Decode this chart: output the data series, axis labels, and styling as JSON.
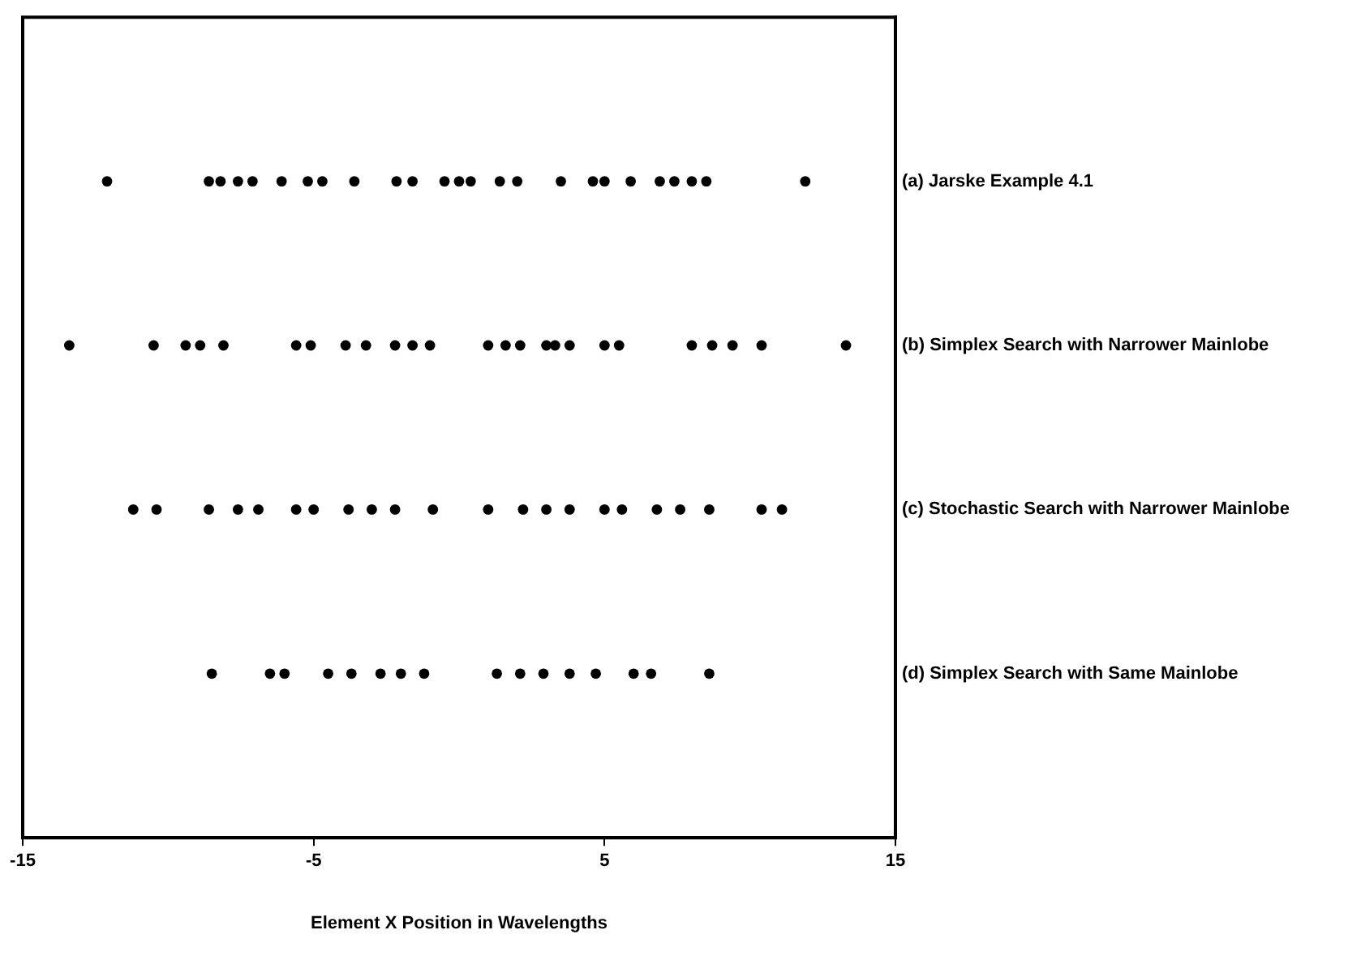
{
  "chart_data": {
    "type": "scatter",
    "orientation": "horizontal",
    "xlabel": "Element X Position in Wavelengths",
    "xlim": [
      -15,
      15
    ],
    "xticks": [
      -15,
      -5,
      5,
      15
    ],
    "grid": false,
    "legend": false,
    "marker": "circle",
    "categories": [
      "(a) Jarske Example 4.1",
      "(b) Simplex Search with Narrower Mainlobe",
      "(c) Stochastic Search with Narrower Mainlobe",
      "(d) Simplex Search with Same Mainlobe"
    ],
    "series": [
      {
        "color": "#000000",
        "x": [
          "(a) Jarske Example 4.1",
          "(a) Jarske Example 4.1",
          "(a) Jarske Example 4.1",
          "(a) Jarske Example 4.1",
          "(a) Jarske Example 4.1",
          "(a) Jarske Example 4.1",
          "(a) Jarske Example 4.1",
          "(a) Jarske Example 4.1",
          "(a) Jarske Example 4.1",
          "(a) Jarske Example 4.1",
          "(a) Jarske Example 4.1",
          "(a) Jarske Example 4.1",
          "(a) Jarske Example 4.1",
          "(a) Jarske Example 4.1",
          "(a) Jarske Example 4.1",
          "(a) Jarske Example 4.1",
          "(a) Jarske Example 4.1",
          "(a) Jarske Example 4.1",
          "(a) Jarske Example 4.1",
          "(a) Jarske Example 4.1",
          "(a) Jarske Example 4.1",
          "(a) Jarske Example 4.1",
          "(a) Jarske Example 4.1",
          "(a) Jarske Example 4.1",
          "(a) Jarske Example 4.1"
        ],
        "values": [
          -12.1,
          -8.6,
          -8.2,
          -7.6,
          -7.1,
          -6.1,
          -5.2,
          -4.7,
          -3.6,
          -2.15,
          -1.6,
          -0.5,
          0.0,
          0.4,
          1.4,
          2.0,
          3.5,
          4.6,
          5.0,
          5.9,
          6.9,
          7.4,
          8.0,
          8.5,
          11.9
        ]
      },
      {
        "color": "#000000",
        "x": [
          "(b) Simplex Search with Narrower Mainlobe",
          "(b) Simplex Search with Narrower Mainlobe",
          "(b) Simplex Search with Narrower Mainlobe",
          "(b) Simplex Search with Narrower Mainlobe",
          "(b) Simplex Search with Narrower Mainlobe",
          "(b) Simplex Search with Narrower Mainlobe",
          "(b) Simplex Search with Narrower Mainlobe",
          "(b) Simplex Search with Narrower Mainlobe",
          "(b) Simplex Search with Narrower Mainlobe",
          "(b) Simplex Search with Narrower Mainlobe",
          "(b) Simplex Search with Narrower Mainlobe",
          "(b) Simplex Search with Narrower Mainlobe",
          "(b) Simplex Search with Narrower Mainlobe",
          "(b) Simplex Search with Narrower Mainlobe",
          "(b) Simplex Search with Narrower Mainlobe",
          "(b) Simplex Search with Narrower Mainlobe",
          "(b) Simplex Search with Narrower Mainlobe",
          "(b) Simplex Search with Narrower Mainlobe",
          "(b) Simplex Search with Narrower Mainlobe",
          "(b) Simplex Search with Narrower Mainlobe",
          "(b) Simplex Search with Narrower Mainlobe",
          "(b) Simplex Search with Narrower Mainlobe",
          "(b) Simplex Search with Narrower Mainlobe",
          "(b) Simplex Search with Narrower Mainlobe",
          "(b) Simplex Search with Narrower Mainlobe"
        ],
        "values": [
          -13.4,
          -10.5,
          -9.4,
          -8.9,
          -8.1,
          -5.6,
          -5.1,
          -3.9,
          -3.2,
          -2.2,
          -1.6,
          -1.0,
          1.0,
          1.6,
          2.1,
          3.0,
          3.3,
          3.8,
          5.0,
          5.5,
          8.0,
          8.7,
          9.4,
          10.4,
          13.3
        ]
      },
      {
        "color": "#000000",
        "x": [
          "(c) Stochastic Search with Narrower Mainlobe",
          "(c) Stochastic Search with Narrower Mainlobe",
          "(c) Stochastic Search with Narrower Mainlobe",
          "(c) Stochastic Search with Narrower Mainlobe",
          "(c) Stochastic Search with Narrower Mainlobe",
          "(c) Stochastic Search with Narrower Mainlobe",
          "(c) Stochastic Search with Narrower Mainlobe",
          "(c) Stochastic Search with Narrower Mainlobe",
          "(c) Stochastic Search with Narrower Mainlobe",
          "(c) Stochastic Search with Narrower Mainlobe",
          "(c) Stochastic Search with Narrower Mainlobe",
          "(c) Stochastic Search with Narrower Mainlobe",
          "(c) Stochastic Search with Narrower Mainlobe",
          "(c) Stochastic Search with Narrower Mainlobe",
          "(c) Stochastic Search with Narrower Mainlobe",
          "(c) Stochastic Search with Narrower Mainlobe",
          "(c) Stochastic Search with Narrower Mainlobe",
          "(c) Stochastic Search with Narrower Mainlobe",
          "(c) Stochastic Search with Narrower Mainlobe",
          "(c) Stochastic Search with Narrower Mainlobe",
          "(c) Stochastic Search with Narrower Mainlobe",
          "(c) Stochastic Search with Narrower Mainlobe"
        ],
        "values": [
          -11.2,
          -10.4,
          -8.6,
          -7.6,
          -6.9,
          -5.6,
          -5.0,
          -3.8,
          -3.0,
          -2.2,
          -0.9,
          1.0,
          2.2,
          3.0,
          3.8,
          5.0,
          5.6,
          6.8,
          7.6,
          8.6,
          10.4,
          11.1
        ]
      },
      {
        "color": "#000000",
        "x": [
          "(d) Simplex Search with Same Mainlobe",
          "(d) Simplex Search with Same Mainlobe",
          "(d) Simplex Search with Same Mainlobe",
          "(d) Simplex Search with Same Mainlobe",
          "(d) Simplex Search with Same Mainlobe",
          "(d) Simplex Search with Same Mainlobe",
          "(d) Simplex Search with Same Mainlobe",
          "(d) Simplex Search with Same Mainlobe",
          "(d) Simplex Search with Same Mainlobe",
          "(d) Simplex Search with Same Mainlobe",
          "(d) Simplex Search with Same Mainlobe",
          "(d) Simplex Search with Same Mainlobe",
          "(d) Simplex Search with Same Mainlobe",
          "(d) Simplex Search with Same Mainlobe",
          "(d) Simplex Search with Same Mainlobe",
          "(d) Simplex Search with Same Mainlobe"
        ],
        "values": [
          -8.5,
          -6.5,
          -6.0,
          -4.5,
          -3.7,
          -2.7,
          -2.0,
          -1.2,
          1.3,
          2.1,
          2.9,
          3.8,
          4.7,
          6.0,
          6.6,
          8.6
        ]
      }
    ]
  }
}
